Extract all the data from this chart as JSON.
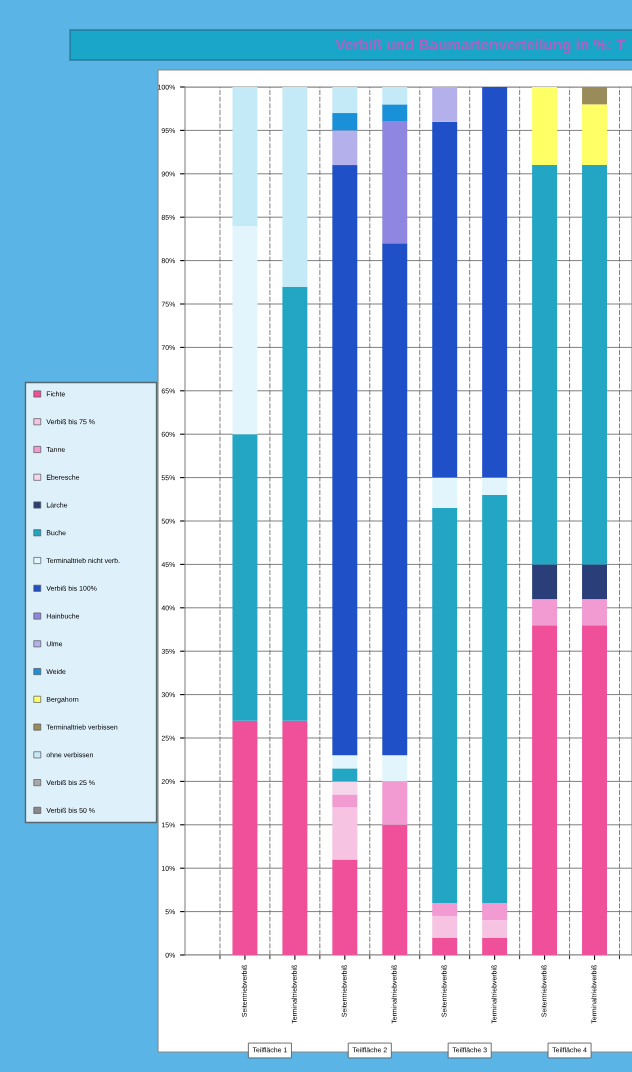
{
  "chart_data": {
    "type": "bar",
    "stacked": true,
    "title": "Verbiß und Baumartenverteilung in %: T",
    "categories": [
      "Seitentriebverbiß",
      "Terminaltriebverbiß",
      "Seitentriebverbiß",
      "Terminaltriebverbiß",
      "Seitentriebverbiß",
      "Terminaltriebverbiß",
      "Seitentriebverbiß",
      "Terminaltriebverbiß"
    ],
    "annotations": [
      "Teilfläche 1",
      "Teilfläche 2",
      "Teilfläche 3",
      "Teilfläche 4"
    ],
    "series": [
      {
        "name": "Fichte",
        "color": "#f0509a",
        "values": [
          27,
          27,
          11,
          15,
          2,
          2,
          38,
          38
        ]
      },
      {
        "name": "Verbiß bis 75 %",
        "color": "#f6c4e2",
        "values": [
          0,
          0,
          6,
          0,
          2.5,
          2,
          0,
          0
        ]
      },
      {
        "name": "Tanne",
        "color": "#f29ad2",
        "values": [
          0,
          0,
          1.5,
          5,
          1.5,
          2,
          3,
          3
        ]
      },
      {
        "name": "Eberesche",
        "color": "#f6d6ea",
        "values": [
          0,
          0,
          1.5,
          0,
          0,
          0,
          0,
          0
        ]
      },
      {
        "name": "Lärche",
        "color": "#2a3f7a",
        "values": [
          0,
          0,
          0,
          0,
          0,
          0,
          4,
          4
        ]
      },
      {
        "name": "Buche",
        "color": "#22a6c4",
        "values": [
          33,
          50,
          1.5,
          0,
          45.5,
          47,
          46,
          46
        ]
      },
      {
        "name": "Terminaltrieb nicht verb.",
        "color": "#e2f5fc",
        "values": [
          24,
          0,
          1.5,
          3,
          3.5,
          2,
          0,
          0
        ]
      },
      {
        "name": "Verbiß bis 100%",
        "color": "#1f50c8",
        "values": [
          0,
          0,
          68,
          59,
          41,
          45,
          0,
          0
        ]
      },
      {
        "name": "Hainbuche",
        "color": "#8e86e0",
        "values": [
          0,
          0,
          0,
          14,
          0,
          0,
          0,
          0
        ]
      },
      {
        "name": "Ulme",
        "color": "#b4b0ec",
        "values": [
          0,
          0,
          4,
          0,
          4,
          0,
          0,
          0
        ]
      },
      {
        "name": "Weide",
        "color": "#1a90d8",
        "values": [
          0,
          0,
          2,
          2,
          0,
          0,
          0,
          0
        ]
      },
      {
        "name": "Bergahorn",
        "color": "#ffff66",
        "values": [
          0,
          0,
          0,
          0,
          0,
          0,
          9,
          7
        ]
      },
      {
        "name": "Terminaltrieb verbissen",
        "color": "#9a8c5a",
        "values": [
          0,
          0,
          0,
          0,
          0,
          0,
          0,
          2
        ]
      },
      {
        "name": "ohne verbissen",
        "color": "#c4eaf8",
        "values": [
          16,
          23,
          3,
          2,
          0,
          0,
          0,
          0
        ]
      },
      {
        "name": "Verbiß bis 25 %",
        "color": "#a8a8a8",
        "values": [
          0,
          0,
          0,
          0,
          0,
          0,
          0,
          0
        ]
      },
      {
        "name": "Verbiß bis 50 %",
        "color": "#8a8a8a",
        "values": [
          0,
          0,
          0,
          0,
          0,
          0,
          0,
          0
        ]
      }
    ],
    "ylim": [
      0,
      100
    ],
    "yticks": [
      {
        "value": 0,
        "label": "0%"
      },
      {
        "value": 5,
        "label": "5%"
      },
      {
        "value": 10,
        "label": "10%"
      },
      {
        "value": 15,
        "label": "15%"
      },
      {
        "value": 20,
        "label": "20%"
      },
      {
        "value": 25,
        "label": "25%"
      },
      {
        "value": 30,
        "label": "30%"
      },
      {
        "value": 35,
        "label": "35%"
      },
      {
        "value": 40,
        "label": "40%"
      },
      {
        "value": 45,
        "label": "45%"
      },
      {
        "value": 50,
        "label": "50%"
      },
      {
        "value": 55,
        "label": "55%"
      },
      {
        "value": 60,
        "label": "60%"
      },
      {
        "value": 65,
        "label": "65%"
      },
      {
        "value": 70,
        "label": "70%"
      },
      {
        "value": 75,
        "label": "75%"
      },
      {
        "value": 80,
        "label": "80%"
      },
      {
        "value": 85,
        "label": "85%"
      },
      {
        "value": 90,
        "label": "90%"
      },
      {
        "value": 95,
        "label": "95%"
      },
      {
        "value": 100,
        "label": "100%"
      }
    ],
    "grid": true,
    "legend": "left"
  }
}
